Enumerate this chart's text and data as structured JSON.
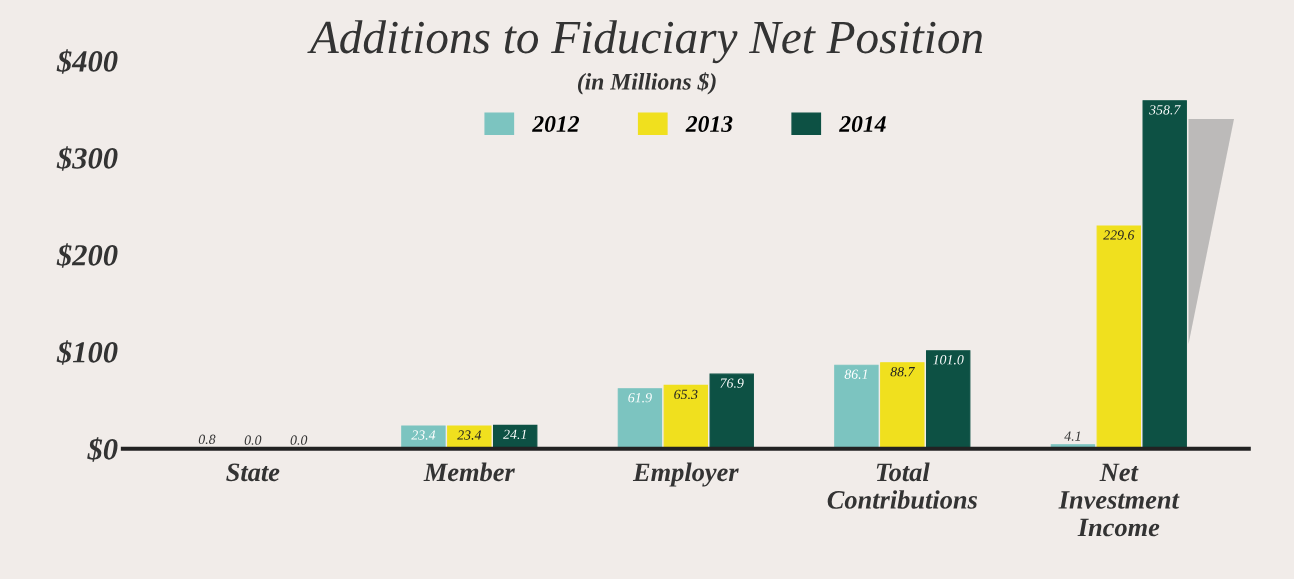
{
  "chart_data": {
    "type": "bar",
    "title": "Additions to Fiduciary Net Position",
    "subtitle": "(in Millions $)",
    "categories": [
      "State",
      "Member",
      "Employer",
      "Total\nContributions",
      "Net\nInvestment\nIncome"
    ],
    "series": [
      {
        "name": "2012",
        "color": "#7cc4c0",
        "values": [
          0.8,
          23.4,
          61.9,
          86.1,
          4.1
        ],
        "value_labels": [
          "0.8",
          "23.4",
          "61.9",
          "86.1",
          "4.1"
        ]
      },
      {
        "name": "2013",
        "color": "#f0e01e",
        "values": [
          0.0,
          23.4,
          65.3,
          88.7,
          229.6
        ],
        "value_labels": [
          "0.0",
          "23.4",
          "65.3",
          "88.7",
          "229.6"
        ]
      },
      {
        "name": "2014",
        "color": "#0d5144",
        "values": [
          0.0,
          24.1,
          76.9,
          101.0,
          358.7
        ],
        "value_labels": [
          "0.0",
          "24.1",
          "76.9",
          "101.0",
          "358.7"
        ]
      }
    ],
    "ylim": [
      0,
      400
    ],
    "yticks": [
      {
        "value": 0,
        "label": "$0"
      },
      {
        "value": 100,
        "label": "$100"
      },
      {
        "value": 200,
        "label": "$200"
      },
      {
        "value": 300,
        "label": "$300"
      },
      {
        "value": 400,
        "label": "$400"
      }
    ],
    "legend": "top",
    "grid": false
  }
}
